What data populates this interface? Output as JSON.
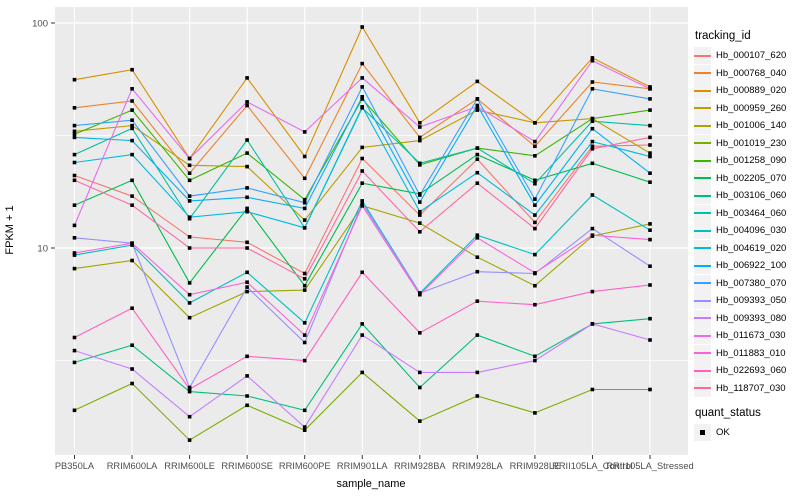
{
  "figure": {
    "background": "#FFFFFF",
    "panel_background": "#EBEBEB",
    "grid_color": "#FFFFFF",
    "axis_text_color": "#4D4D4D",
    "marker_color": "#000000"
  },
  "axes": {
    "x_label": "sample_name",
    "y_label": "FPKM + 1",
    "y_tick_labels": [
      "100",
      "10"
    ]
  },
  "legend": {
    "tracking_title": "tracking_id",
    "quant_title": "quant_status",
    "quant_items": [
      {
        "label": "OK",
        "marker": "black-square",
        "color": "#000000"
      }
    ]
  },
  "chart_data": {
    "type": "line",
    "title": "",
    "xlabel": "sample_name",
    "ylabel": "FPKM + 1",
    "y_scale": "log10",
    "y_tick_values": [
      100,
      10
    ],
    "ylim": [
      1.2,
      115
    ],
    "grid": true,
    "legend_position": "right",
    "point_marker": "filled-black-square",
    "categories": [
      "PB350LA",
      "RRIM600LA",
      "RRIM600LE",
      "RRIM600SE",
      "RRIM600PE",
      "RRIM901LA",
      "RRIM928BA",
      "RRIM928LA",
      "RRIM928LE",
      "RRII105LA_Control",
      "RRII105LA_Stressed"
    ],
    "series": [
      {
        "name": "Hb_000107_620",
        "color": "#F8766D",
        "values": [
          21,
          17,
          11.2,
          10.6,
          7.7,
          25,
          14,
          24.8,
          13,
          28.3,
          28.7
        ]
      },
      {
        "name": "Hb_000768_040",
        "color": "#EA8331",
        "values": [
          42,
          45,
          21.5,
          43,
          20.4,
          66,
          31,
          46,
          28.3,
          54.7,
          51
        ]
      },
      {
        "name": "Hb_000889_020",
        "color": "#D89000",
        "values": [
          56,
          62,
          25,
          57,
          25.5,
          96,
          36,
          55,
          36,
          70,
          52
        ]
      },
      {
        "name": "Hb_000959_260",
        "color": "#C09B00",
        "values": [
          33,
          35,
          23.3,
          23,
          13.3,
          28,
          30,
          41,
          36,
          37.6,
          26.4
        ]
      },
      {
        "name": "Hb_001006_140",
        "color": "#A3A500",
        "values": [
          8.1,
          8.8,
          4.9,
          6.4,
          6.5,
          15.4,
          12.9,
          9.1,
          6.8,
          11.3,
          12.8
        ]
      },
      {
        "name": "Hb_001019_230",
        "color": "#7CAE00",
        "values": [
          1.9,
          2.5,
          1.4,
          2.0,
          1.55,
          2.8,
          1.7,
          2.2,
          1.85,
          2.35,
          2.35
        ]
      },
      {
        "name": "Hb_001258_090",
        "color": "#39B600",
        "values": [
          32,
          41,
          20,
          26.4,
          16.4,
          46,
          23.4,
          27.8,
          25.7,
          37.6,
          41
        ]
      },
      {
        "name": "Hb_002205_070",
        "color": "#00BB4E",
        "values": [
          15.5,
          20,
          7.0,
          15,
          6.8,
          19.4,
          17.4,
          26,
          20,
          23.8,
          19.6
        ]
      },
      {
        "name": "Hb_003106_060",
        "color": "#00BF7D",
        "values": [
          3.1,
          3.7,
          2.3,
          2.2,
          1.9,
          4.6,
          2.4,
          4.1,
          3.3,
          4.6,
          4.85
        ]
      },
      {
        "name": "Hb_003464_060",
        "color": "#00C1A3",
        "values": [
          26,
          34,
          13.5,
          30.2,
          12.3,
          42,
          23.8,
          27.8,
          19.3,
          36.6,
          35
        ]
      },
      {
        "name": "Hb_004096_030",
        "color": "#00BFC4",
        "values": [
          9.3,
          10.3,
          5.7,
          7.8,
          4.65,
          16.2,
          6.3,
          11.4,
          9.35,
          17.2,
          12
        ]
      },
      {
        "name": "Hb_004619_020",
        "color": "#00BAE0",
        "values": [
          24,
          26,
          13.7,
          14.5,
          12.3,
          42.4,
          14.5,
          21.6,
          14,
          29.7,
          25.5
        ]
      },
      {
        "name": "Hb_006922_100",
        "color": "#00B0F6",
        "values": [
          31,
          30,
          16.2,
          16.8,
          15,
          47,
          16,
          43,
          15.5,
          33.9,
          21.5
        ]
      },
      {
        "name": "Hb_007380_070",
        "color": "#35A2FF",
        "values": [
          35,
          37,
          17,
          18.5,
          15.9,
          52,
          17.2,
          46,
          16.5,
          51,
          46
        ]
      },
      {
        "name": "Hb_009393_050",
        "color": "#9590FF",
        "values": [
          11.1,
          10.5,
          2.4,
          6.7,
          3.8,
          15.8,
          6.3,
          7.85,
          7.7,
          12.2,
          8.3
        ]
      },
      {
        "name": "Hb_009393_080",
        "color": "#C77CFF",
        "values": [
          3.5,
          2.9,
          1.78,
          2.7,
          1.6,
          4.1,
          2.8,
          2.8,
          3.16,
          4.6,
          3.9
        ]
      },
      {
        "name": "Hb_011673_030",
        "color": "#E76BF3",
        "values": [
          12.6,
          51,
          25,
          44.6,
          32.8,
          57,
          34.5,
          42.5,
          29.7,
          68,
          51
        ]
      },
      {
        "name": "Hb_011883_010",
        "color": "#FA62DB",
        "values": [
          9.5,
          10.5,
          6.2,
          7.05,
          4.1,
          15.4,
          6.2,
          11.1,
          7.75,
          11.4,
          10.9
        ]
      },
      {
        "name": "Hb_022693_060",
        "color": "#FF61C3",
        "values": [
          4.0,
          5.4,
          2.36,
          3.3,
          3.16,
          7.8,
          4.2,
          5.8,
          5.6,
          6.4,
          6.85
        ]
      },
      {
        "name": "Hb_118707_030",
        "color": "#FF67A4",
        "values": [
          20,
          15.5,
          10,
          10,
          7.3,
          22,
          11.8,
          19.4,
          12.2,
          27.6,
          31
        ]
      }
    ]
  }
}
